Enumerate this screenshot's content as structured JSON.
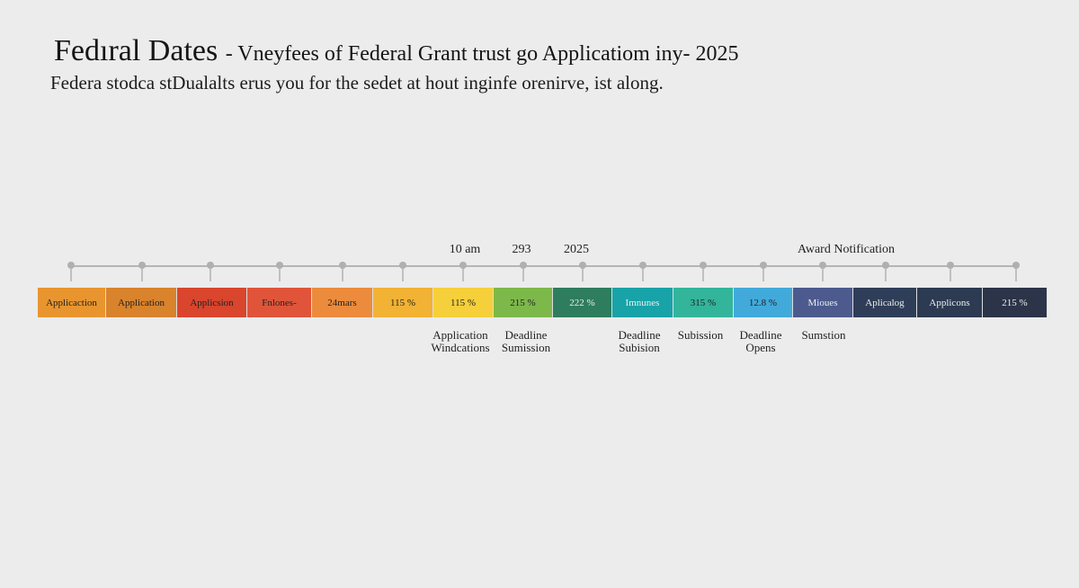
{
  "header": {
    "title": "Fedıral Dates",
    "title_rest": "- Vneyfees of Federal Grant trust go Applicatiom  iny- 2025",
    "subtitle": "Federa stodca stDualalts erus you for the sedet at hout inginfe orenirve, ist along."
  },
  "top_labels": [
    "10 am",
    "293",
    "2025",
    "Award Notification"
  ],
  "segments": [
    "Applicaction",
    "Application",
    "Applicsion",
    "Fnlones-",
    "24mars",
    "115 %",
    "115 %",
    "215 %",
    "222 %",
    "Imnunes",
    "315 %",
    "12.8 %",
    "Mioues",
    "Aplicalog",
    "Applicons",
    "215 %"
  ],
  "bottom_labels": [
    [
      "Application",
      "Windcations"
    ],
    [
      "Deadline",
      "Sumission"
    ],
    [
      "Deadline",
      "Subision"
    ],
    [
      "Subission"
    ],
    [
      "Deadline",
      "Opens"
    ],
    [
      "Sumstion"
    ]
  ]
}
